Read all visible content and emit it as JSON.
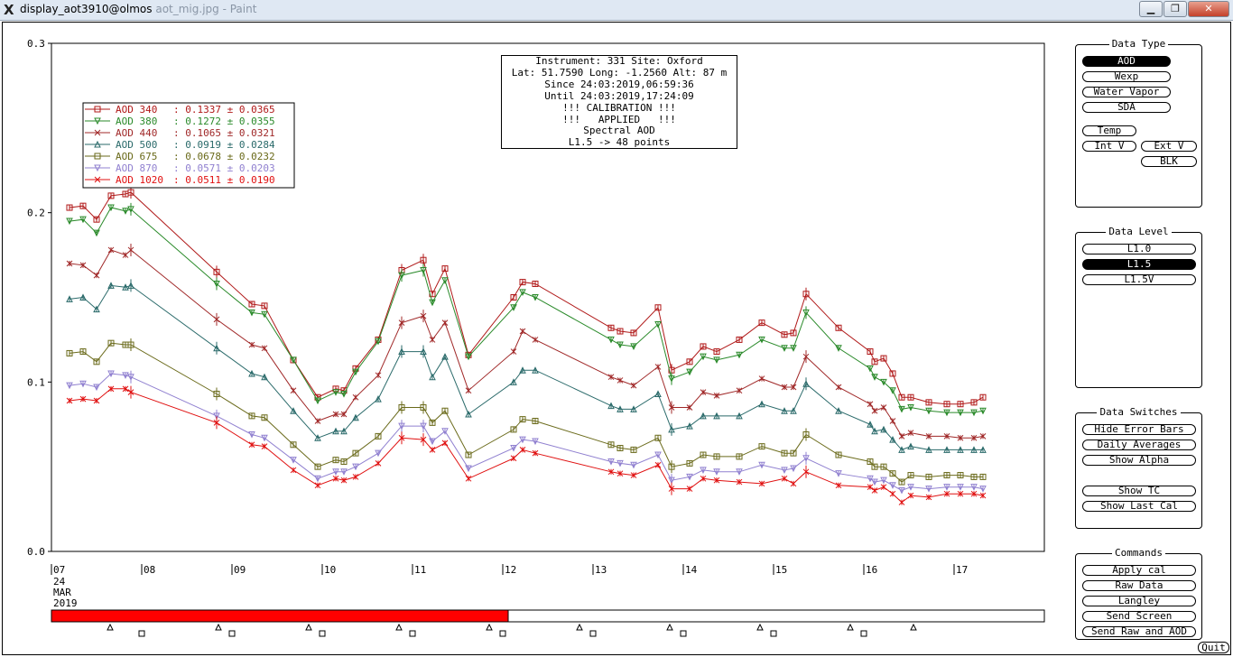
{
  "window": {
    "title": "display_aot3910@olmos",
    "title_faded": "aot_mig.jpg - Paint",
    "min_label": "▁",
    "max_label": "❐",
    "close_label": "✕"
  },
  "info_box": {
    "lines": [
      "Instrument: 331 Site: Oxford",
      "Lat: 51.7590 Long: -1.2560 Alt: 87 m",
      "Since 24:03:2019,06:59:36",
      "Until 24:03:2019,17:24:09",
      "!!! CALIBRATION !!!",
      "!!!   APPLIED   !!!",
      "Spectral AOD",
      "L1.5 -> 48 points"
    ]
  },
  "chart_data": {
    "type": "line",
    "title": "",
    "xlabel": "",
    "ylabel": "",
    "ylim": [
      0,
      0.3
    ],
    "xlim": [
      7.0,
      18.0
    ],
    "yticks": [
      "0.0",
      "0.1",
      "0.2",
      "0.3"
    ],
    "xticks": [
      "07",
      "08",
      "09",
      "10",
      "11",
      "12",
      "13",
      "14",
      "15",
      "16",
      "17"
    ],
    "date_label": [
      "24",
      "MAR",
      "2019"
    ],
    "x": [
      7.2,
      7.35,
      7.5,
      7.66,
      7.82,
      7.88,
      8.83,
      9.22,
      9.36,
      9.68,
      9.95,
      10.15,
      10.24,
      10.37,
      10.62,
      10.88,
      11.12,
      11.22,
      11.36,
      11.62,
      12.12,
      12.22,
      12.36,
      13.2,
      13.3,
      13.45,
      13.72,
      13.87,
      14.07,
      14.22,
      14.37,
      14.62,
      14.87,
      15.12,
      15.22,
      15.36,
      15.72,
      16.07,
      16.12,
      16.22,
      16.32,
      16.42,
      16.52,
      16.72,
      16.92,
      17.07,
      17.22,
      17.32
    ],
    "series": [
      {
        "name": "AOD 340",
        "color": "#b01818",
        "marker": "square",
        "stat": "0.1337 ± 0.0365",
        "values": [
          0.203,
          0.204,
          0.196,
          0.21,
          0.211,
          0.212,
          0.165,
          0.146,
          0.145,
          0.113,
          0.091,
          0.096,
          0.095,
          0.108,
          0.125,
          0.166,
          0.172,
          0.152,
          0.167,
          0.116,
          0.15,
          0.159,
          0.158,
          0.132,
          0.13,
          0.129,
          0.144,
          0.107,
          0.112,
          0.121,
          0.118,
          0.125,
          0.135,
          0.128,
          0.129,
          0.152,
          0.132,
          0.118,
          0.112,
          0.114,
          0.105,
          0.091,
          0.091,
          0.088,
          0.087,
          0.087,
          0.088,
          0.091
        ]
      },
      {
        "name": "AOD 380",
        "color": "#2a8a2a",
        "marker": "tri-down",
        "stat": "0.1272 ± 0.0355",
        "values": [
          0.195,
          0.196,
          0.188,
          0.203,
          0.201,
          0.202,
          0.158,
          0.141,
          0.14,
          0.113,
          0.089,
          0.094,
          0.093,
          0.106,
          0.124,
          0.163,
          0.166,
          0.147,
          0.16,
          0.115,
          0.144,
          0.153,
          0.15,
          0.125,
          0.122,
          0.121,
          0.134,
          0.102,
          0.106,
          0.115,
          0.113,
          0.116,
          0.125,
          0.12,
          0.12,
          0.141,
          0.12,
          0.108,
          0.103,
          0.1,
          0.095,
          0.084,
          0.085,
          0.083,
          0.082,
          0.082,
          0.082,
          0.083
        ]
      },
      {
        "name": "AOD 440",
        "color": "#a02828",
        "marker": "x",
        "stat": "0.1065 ± 0.0321",
        "values": [
          0.17,
          0.169,
          0.163,
          0.178,
          0.175,
          0.178,
          0.137,
          0.122,
          0.12,
          0.095,
          0.077,
          0.081,
          0.081,
          0.091,
          0.104,
          0.135,
          0.139,
          0.125,
          0.135,
          0.095,
          0.118,
          0.13,
          0.125,
          0.103,
          0.101,
          0.098,
          0.109,
          0.085,
          0.085,
          0.094,
          0.092,
          0.095,
          0.102,
          0.097,
          0.097,
          0.115,
          0.097,
          0.087,
          0.083,
          0.085,
          0.077,
          0.068,
          0.07,
          0.068,
          0.068,
          0.067,
          0.067,
          0.068
        ]
      },
      {
        "name": "AOD 500",
        "color": "#2a6a6a",
        "marker": "tri-up",
        "stat": "0.0919 ± 0.0284",
        "values": [
          0.149,
          0.15,
          0.143,
          0.157,
          0.156,
          0.157,
          0.12,
          0.105,
          0.103,
          0.083,
          0.067,
          0.071,
          0.071,
          0.079,
          0.09,
          0.118,
          0.118,
          0.103,
          0.115,
          0.081,
          0.1,
          0.107,
          0.107,
          0.086,
          0.084,
          0.084,
          0.093,
          0.072,
          0.074,
          0.08,
          0.08,
          0.08,
          0.087,
          0.083,
          0.083,
          0.099,
          0.083,
          0.075,
          0.071,
          0.072,
          0.066,
          0.06,
          0.062,
          0.06,
          0.06,
          0.06,
          0.06,
          0.06
        ]
      },
      {
        "name": "AOD 675",
        "color": "#6a6a1a",
        "marker": "square",
        "stat": "0.0678 ± 0.0232",
        "values": [
          0.117,
          0.118,
          0.112,
          0.123,
          0.122,
          0.122,
          0.093,
          0.08,
          0.079,
          0.063,
          0.05,
          0.054,
          0.053,
          0.058,
          0.068,
          0.085,
          0.085,
          0.076,
          0.083,
          0.057,
          0.072,
          0.078,
          0.077,
          0.063,
          0.061,
          0.06,
          0.067,
          0.05,
          0.052,
          0.057,
          0.056,
          0.056,
          0.062,
          0.058,
          0.058,
          0.069,
          0.057,
          0.053,
          0.05,
          0.05,
          0.046,
          0.041,
          0.045,
          0.044,
          0.045,
          0.045,
          0.044,
          0.044
        ]
      },
      {
        "name": "AOD 870",
        "color": "#9080d0",
        "marker": "tri-down",
        "stat": "0.0571 ± 0.0203",
        "values": [
          0.098,
          0.099,
          0.097,
          0.105,
          0.104,
          0.103,
          0.08,
          0.069,
          0.067,
          0.054,
          0.043,
          0.047,
          0.047,
          0.05,
          0.058,
          0.074,
          0.074,
          0.065,
          0.071,
          0.049,
          0.061,
          0.066,
          0.065,
          0.053,
          0.052,
          0.051,
          0.057,
          0.042,
          0.044,
          0.048,
          0.047,
          0.047,
          0.051,
          0.048,
          0.049,
          0.055,
          0.046,
          0.043,
          0.041,
          0.042,
          0.039,
          0.036,
          0.038,
          0.037,
          0.038,
          0.038,
          0.038,
          0.037
        ]
      },
      {
        "name": "AOD 1020",
        "color": "#e01010",
        "marker": "x",
        "stat": "0.0511 ± 0.0190",
        "values": [
          0.089,
          0.09,
          0.089,
          0.096,
          0.096,
          0.094,
          0.076,
          0.063,
          0.062,
          0.048,
          0.039,
          0.043,
          0.042,
          0.044,
          0.052,
          0.067,
          0.066,
          0.06,
          0.064,
          0.043,
          0.055,
          0.06,
          0.058,
          0.047,
          0.046,
          0.045,
          0.051,
          0.037,
          0.037,
          0.043,
          0.042,
          0.041,
          0.04,
          0.043,
          0.04,
          0.047,
          0.039,
          0.038,
          0.036,
          0.038,
          0.034,
          0.029,
          0.033,
          0.032,
          0.034,
          0.034,
          0.034,
          0.033
        ]
      }
    ],
    "error_bar_points": [
      5,
      6,
      15,
      16,
      27,
      35
    ],
    "progress_fraction": 0.46,
    "timeline_triangles": [
      7.65,
      8.85,
      9.85,
      10.85,
      11.85,
      12.85,
      13.85,
      14.85,
      15.85,
      16.55
    ],
    "timeline_squares": [
      8.0,
      9.0,
      10.0,
      11.0,
      12.0,
      13.0,
      14.0,
      15.0,
      16.0
    ]
  },
  "panels": {
    "data_type": {
      "title": "Data Type",
      "aod": "AOD",
      "wexp": "Wexp",
      "water_vapor": "Water Vapor",
      "sda": "SDA",
      "temp": "Temp",
      "int_v": "Int V",
      "ext_v": "Ext V",
      "blk": "BLK"
    },
    "data_level": {
      "title": "Data Level",
      "l10": "L1.0",
      "l15": "L1.5",
      "l15v": "L1.5V"
    },
    "data_switches": {
      "title": "Data Switches",
      "hide_error_bars": "Hide Error Bars",
      "daily_averages": "Daily Averages",
      "show_alpha": "Show Alpha",
      "show_tc": "Show TC",
      "show_last_cal": "Show Last Cal"
    },
    "commands": {
      "title": "Commands",
      "apply_cal": "Apply cal",
      "raw_data": "Raw Data",
      "langley": "Langley",
      "send_screen": "Send Screen",
      "send_raw_and_aod": "Send Raw and AOD"
    }
  },
  "quit_label": "Quit"
}
